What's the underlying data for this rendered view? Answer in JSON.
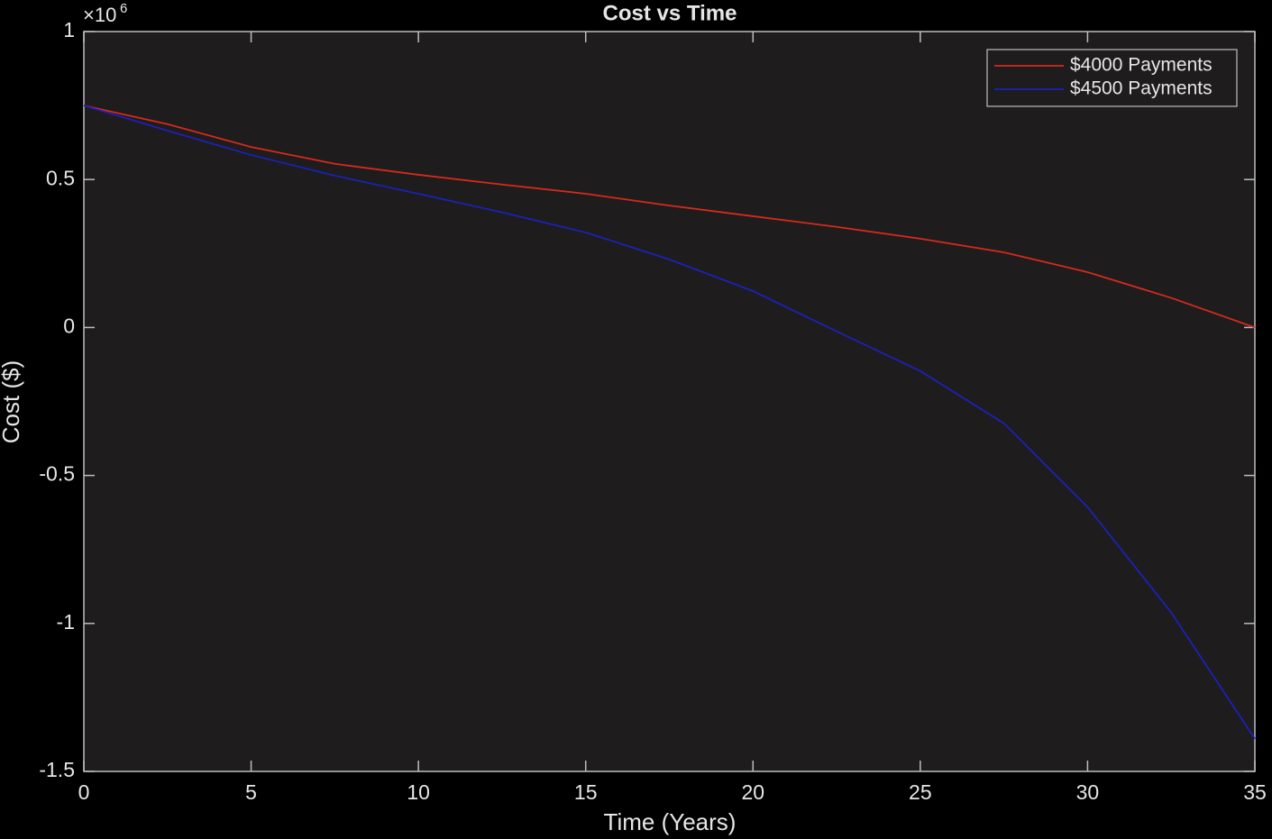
{
  "chart_data": {
    "type": "line",
    "title": "Cost vs Time",
    "xlabel": "Time (Years)",
    "ylabel": "Cost ($)",
    "y_multiplier_base": "×10",
    "y_multiplier_exponent": "6",
    "x": [
      0,
      2.5,
      5,
      7.5,
      10,
      12.5,
      15,
      17.5,
      20,
      22.5,
      25,
      27.5,
      30,
      32.5,
      35
    ],
    "series": [
      {
        "name": "$4000 Payments",
        "color": "#d42a1e",
        "values": [
          0.75,
          0.687,
          0.61,
          0.553,
          0.516,
          0.483,
          0.452,
          0.412,
          0.376,
          0.34,
          0.3,
          0.254,
          0.187,
          0.1,
          0
        ]
      },
      {
        "name": "$4500 Payments",
        "color": "#1a22b8",
        "values": [
          0.75,
          0.665,
          0.583,
          0.513,
          0.452,
          0.389,
          0.321,
          0.23,
          0.123,
          -0.013,
          -0.147,
          -0.324,
          -0.607,
          -0.963,
          -1.39
        ]
      }
    ],
    "xlim": [
      0,
      35
    ],
    "xticks": [
      0,
      5,
      10,
      15,
      20,
      25,
      30,
      35
    ],
    "ylim": [
      -1.5,
      1
    ],
    "yticks": [
      -1.5,
      -1,
      -0.5,
      0,
      0.5,
      1
    ],
    "legend": "top-right",
    "grid": false
  }
}
